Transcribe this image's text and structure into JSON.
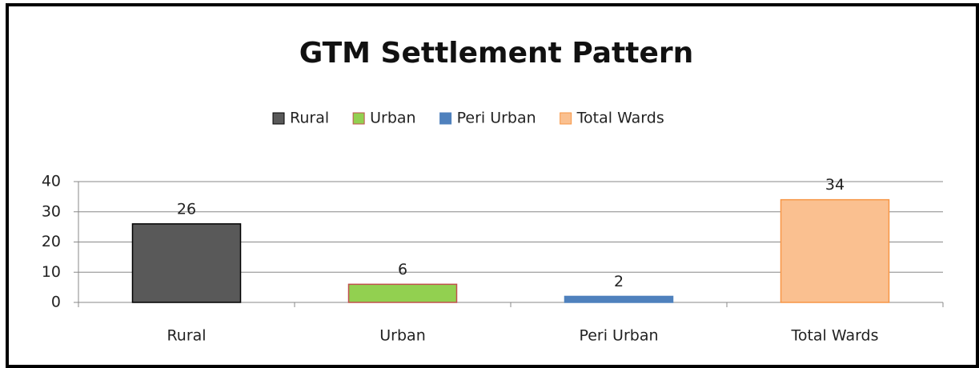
{
  "chart_data": {
    "type": "bar",
    "title": "GTM Settlement Pattern",
    "categories": [
      "Rural",
      "Urban",
      "Peri Urban",
      "Total Wards"
    ],
    "values": [
      26,
      6,
      2,
      34
    ],
    "colors": [
      "#595959",
      "#92d050",
      "#4f81bd",
      "#fac090"
    ],
    "edge_colors": [
      "#000000",
      "#c0504d",
      "#4f81bd",
      "#f79646"
    ],
    "ylim": [
      0,
      40
    ],
    "yticks": [
      0,
      10,
      20,
      30,
      40
    ],
    "grid": true,
    "legend": "top"
  }
}
